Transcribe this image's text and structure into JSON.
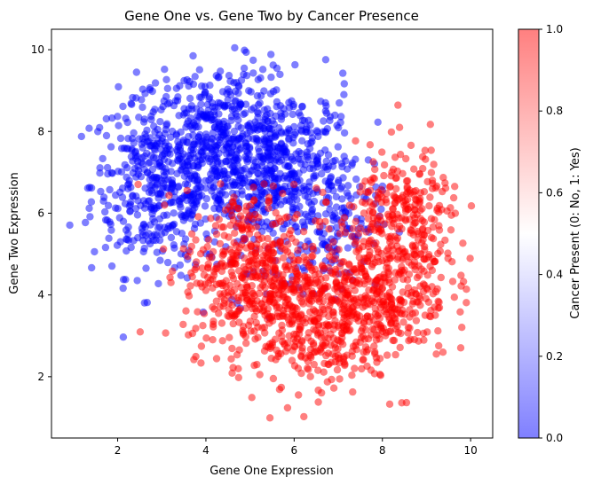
{
  "chart_data": {
    "type": "scatter",
    "title": "Gene One vs. Gene Two by Cancer Presence",
    "xlabel": "Gene One Expression",
    "ylabel": "Gene Two Expression",
    "xlim": [
      0.5,
      10.5
    ],
    "ylim": [
      0.5,
      10.5
    ],
    "xticks": [
      2,
      4,
      6,
      8,
      10
    ],
    "yticks": [
      2,
      4,
      6,
      8,
      10
    ],
    "grid": false,
    "marker_alpha": 0.5,
    "series": [
      {
        "class_value": 0,
        "color": "#0000ff",
        "clusters": [
          {
            "cx": 2.9,
            "cy": 6.7,
            "sx": 0.75,
            "sy": 1.1,
            "n": 420
          },
          {
            "cx": 4.4,
            "cy": 7.6,
            "sx": 0.8,
            "sy": 1.0,
            "n": 480
          },
          {
            "cx": 5.8,
            "cy": 6.9,
            "sx": 0.8,
            "sy": 1.1,
            "n": 420
          },
          {
            "cx": 6.9,
            "cy": 5.9,
            "sx": 0.5,
            "sy": 0.9,
            "n": 120
          }
        ]
      },
      {
        "class_value": 1,
        "color": "#ff0000",
        "clusters": [
          {
            "cx": 5.0,
            "cy": 4.6,
            "sx": 0.75,
            "sy": 1.0,
            "n": 430
          },
          {
            "cx": 6.4,
            "cy": 3.4,
            "sx": 0.9,
            "sy": 0.8,
            "n": 430
          },
          {
            "cx": 8.1,
            "cy": 4.4,
            "sx": 0.7,
            "sy": 1.0,
            "n": 380
          },
          {
            "cx": 8.6,
            "cy": 6.0,
            "sx": 0.6,
            "sy": 0.8,
            "n": 200
          }
        ]
      }
    ],
    "colorbar": {
      "label": "Cancer Present (0: No, 1: Yes)",
      "range": [
        0.0,
        1.0
      ],
      "ticks": [
        "0.0",
        "0.2",
        "0.4",
        "0.6",
        "0.8",
        "1.0"
      ],
      "colors": [
        "#0000ff",
        "#ffffff",
        "#ff0000"
      ],
      "alpha": 0.5
    }
  }
}
